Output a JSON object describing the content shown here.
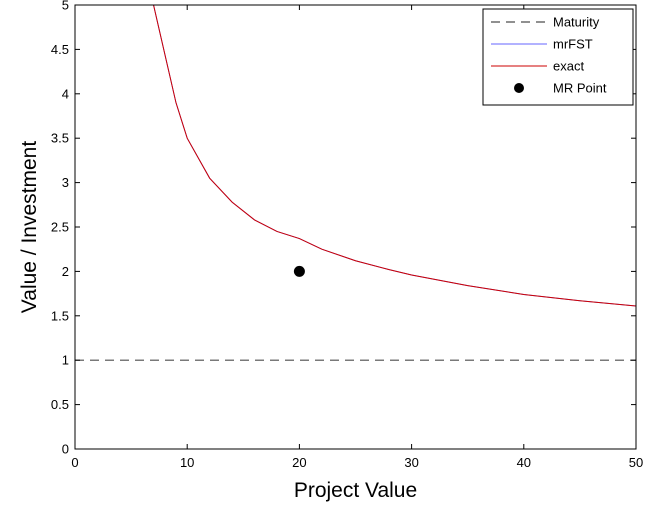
{
  "chart_data": {
    "type": "line",
    "title": "",
    "xlabel": "Project Value",
    "ylabel": "Value / Investment",
    "xlim": [
      0,
      50
    ],
    "ylim": [
      0,
      5
    ],
    "xticks": [
      0,
      10,
      20,
      30,
      40,
      50
    ],
    "yticks": [
      0,
      0.5,
      1,
      1.5,
      2,
      2.5,
      3,
      3.5,
      4,
      4.5,
      5
    ],
    "xtick_labels": [
      "0",
      "10",
      "20",
      "30",
      "40",
      "50"
    ],
    "ytick_labels": [
      "0",
      "0.5",
      "1",
      "1.5",
      "2",
      "2.5",
      "3",
      "3.5",
      "4",
      "4.5",
      "5"
    ],
    "grid": false,
    "legend_position": "top-right",
    "series": [
      {
        "name": "Maturity",
        "style": "dashed",
        "color": "#4d4d4d",
        "x": [
          0,
          50
        ],
        "y": [
          1,
          1
        ]
      },
      {
        "name": "mrFST",
        "style": "solid",
        "color": "#6666ff",
        "x": [
          7,
          8,
          9,
          10,
          12,
          14,
          16,
          18,
          20,
          22,
          25,
          28,
          30,
          35,
          40,
          45,
          50
        ],
        "y": [
          5.0,
          4.45,
          3.9,
          3.5,
          3.05,
          2.78,
          2.58,
          2.45,
          2.37,
          2.25,
          2.12,
          2.02,
          1.96,
          1.84,
          1.74,
          1.67,
          1.61
        ]
      },
      {
        "name": "exact",
        "style": "solid",
        "color": "#cc0000",
        "x": [
          7,
          8,
          9,
          10,
          12,
          14,
          16,
          18,
          20,
          22,
          25,
          28,
          30,
          35,
          40,
          45,
          50
        ],
        "y": [
          5.0,
          4.45,
          3.9,
          3.5,
          3.05,
          2.78,
          2.58,
          2.45,
          2.37,
          2.25,
          2.12,
          2.02,
          1.96,
          1.84,
          1.74,
          1.67,
          1.61
        ]
      },
      {
        "name": "MR Point",
        "style": "marker",
        "color": "#000000",
        "x": [
          20
        ],
        "y": [
          2
        ]
      }
    ]
  }
}
